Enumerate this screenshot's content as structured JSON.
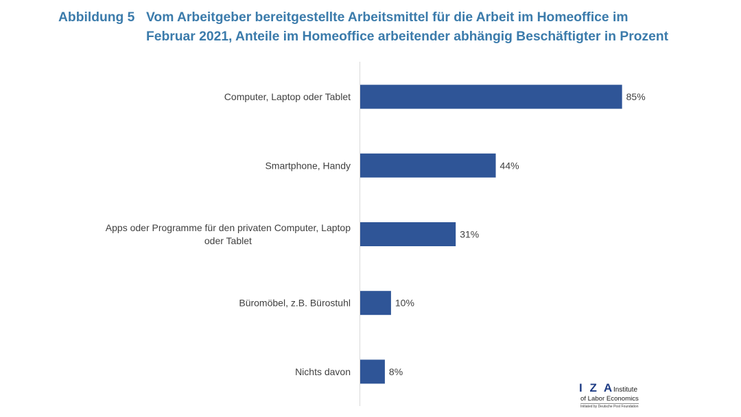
{
  "figure": {
    "label": "Abbildung 5"
  },
  "chart_data": {
    "type": "bar",
    "orientation": "horizontal",
    "title": "Vom Arbeitgeber bereitgestellte Arbeitsmittel für die Arbeit im Homeoffice im\nFebruar 2021, Anteile im Homeoffice arbeitender abhängig Beschäftigter in Prozent",
    "categories": [
      "Computer, Laptop oder Tablet",
      "Smartphone, Handy",
      "Apps oder Programme für den privaten Computer, Laptop oder Tablet",
      "Büromöbel, z.B. Bürostuhl",
      "Nichts davon"
    ],
    "values": [
      85,
      44,
      31,
      10,
      8
    ],
    "data_labels": [
      "85%",
      "44%",
      "31%",
      "10%",
      "8%"
    ],
    "xlim": [
      0,
      100
    ],
    "grid": false,
    "bar_color": "#2f5597"
  },
  "colors": {
    "title": "#3b7bab",
    "chart_text": "#404040",
    "axis": "#d9d9d9",
    "logo": "#1f3d85"
  },
  "logo": {
    "wordmark": "I Z A",
    "name_line1": "Institute",
    "name_line2": "of Labor Economics",
    "tagline": "Initiated by Deutsche Post Foundation"
  }
}
